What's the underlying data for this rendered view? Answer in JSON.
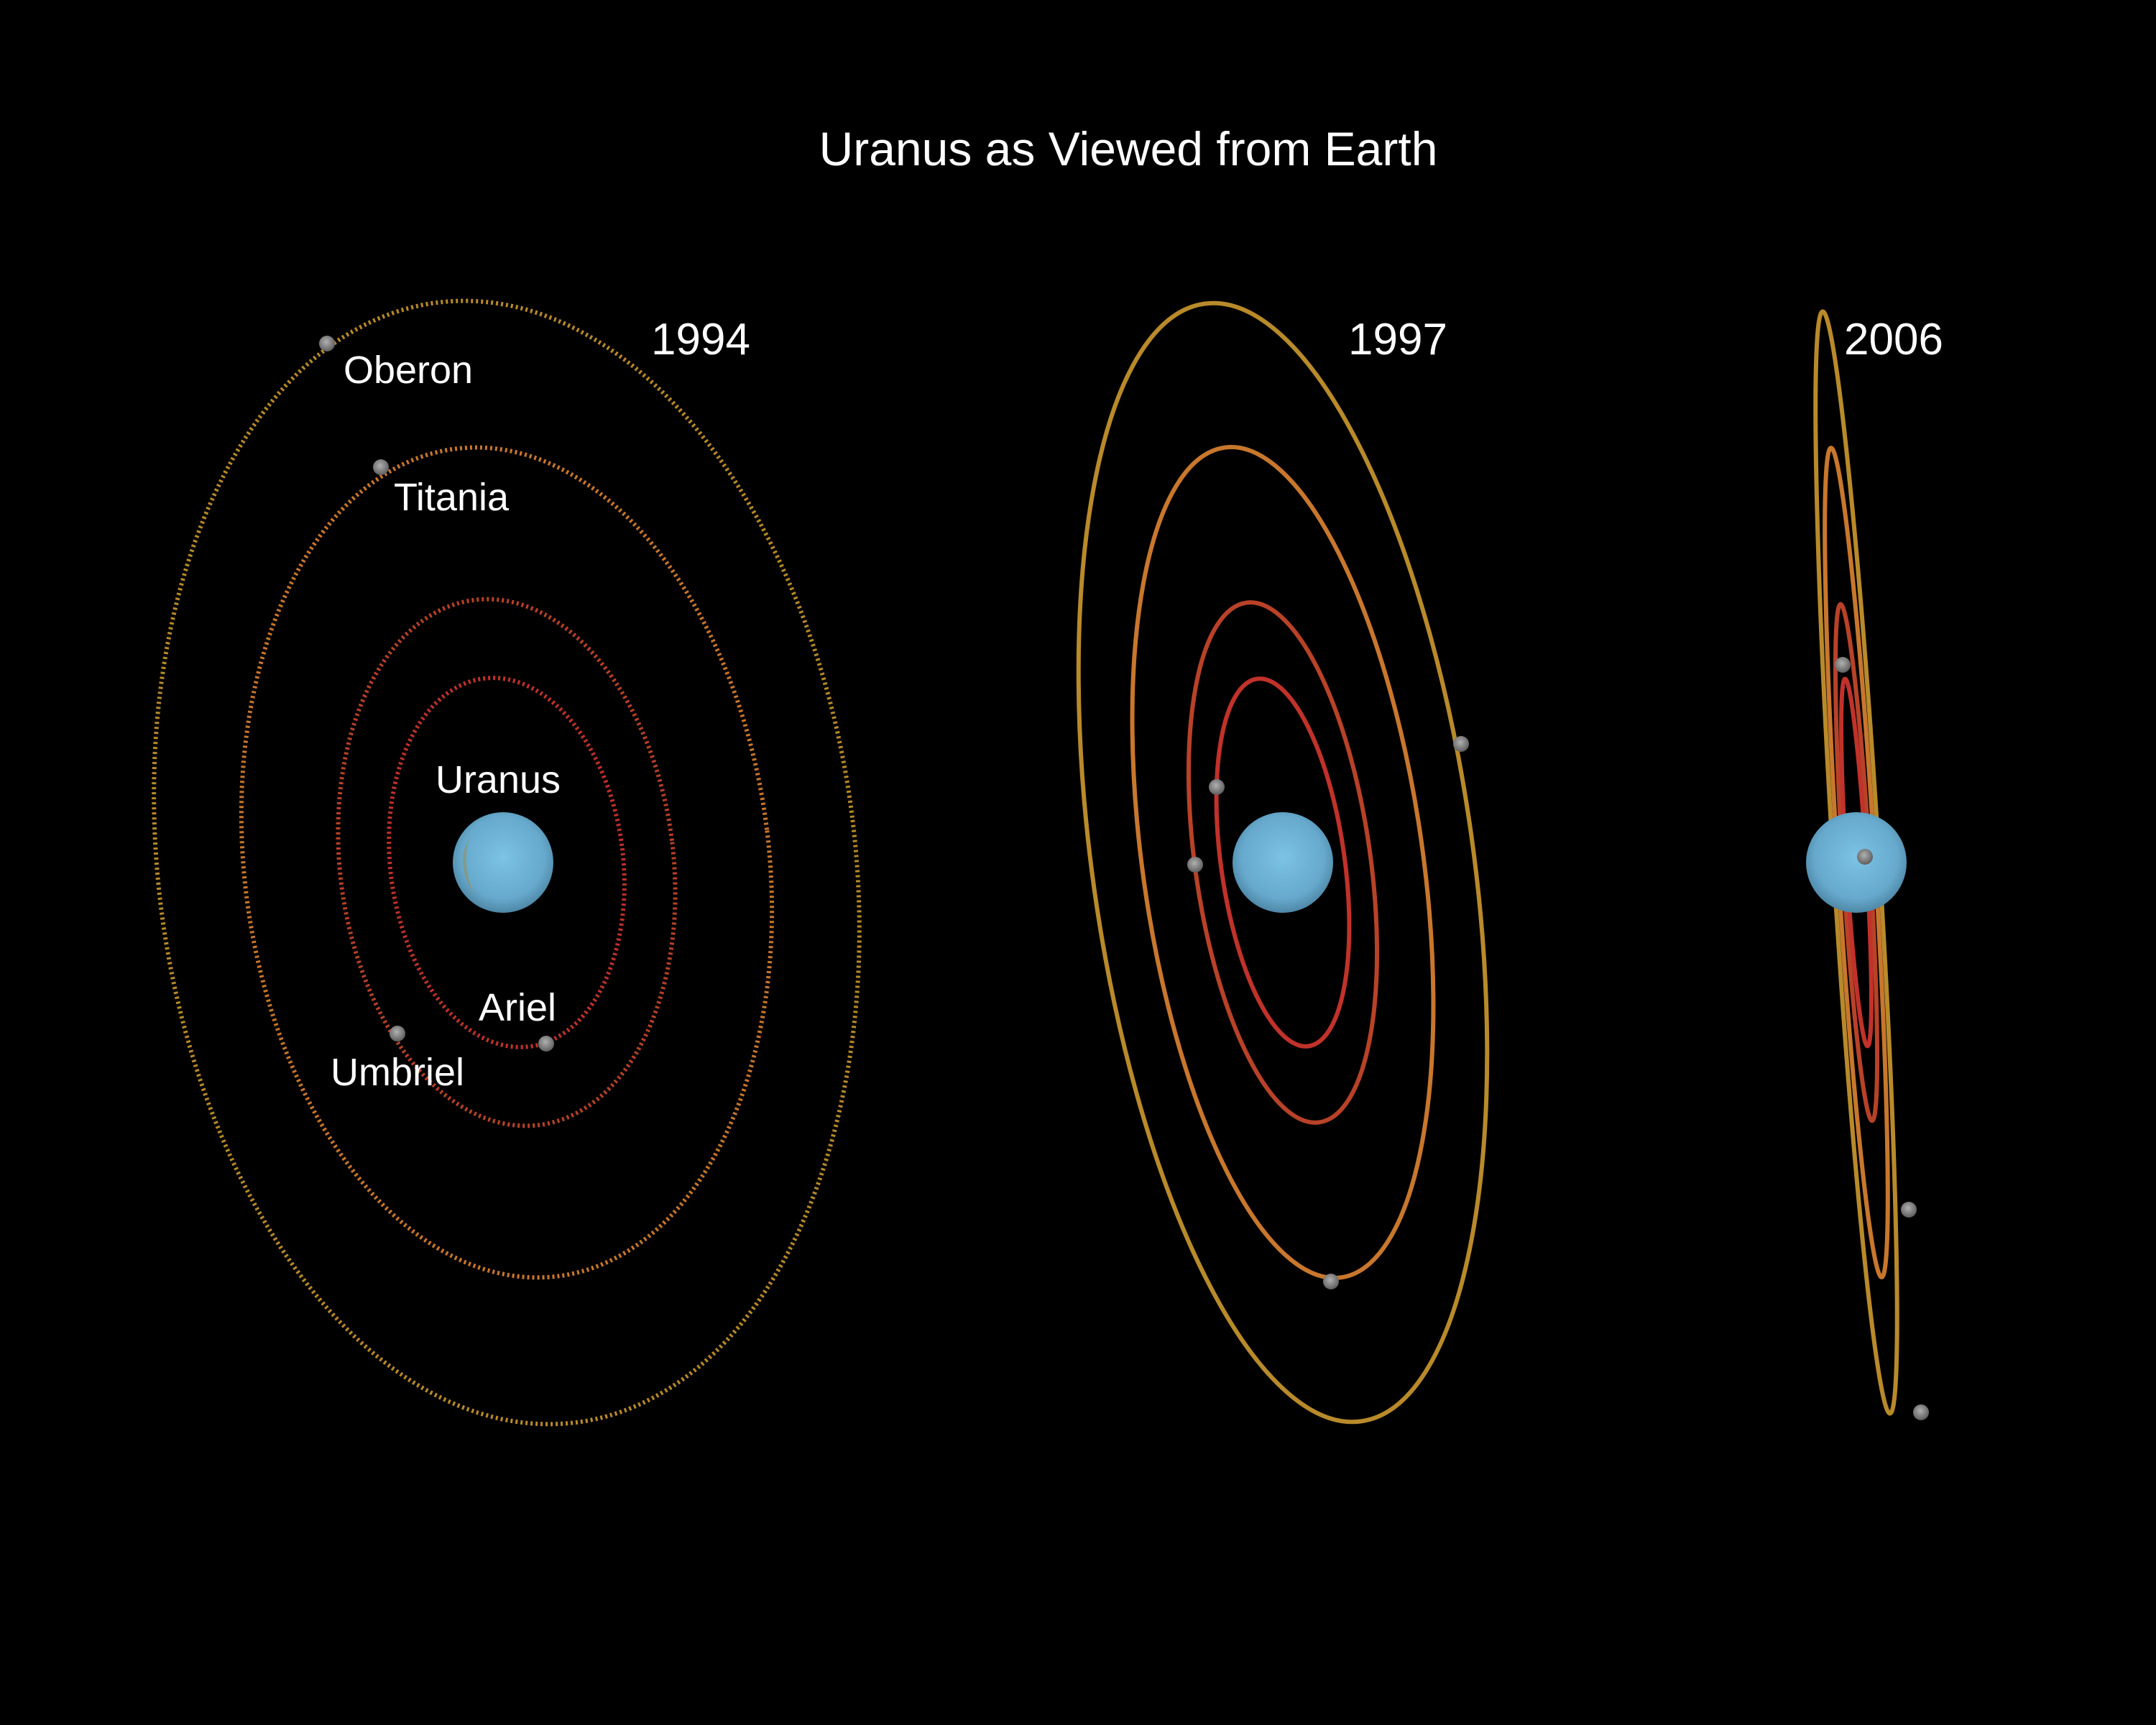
{
  "title": "Uranus as Viewed from Earth",
  "colors": {
    "background": "#000000",
    "planet": "#6fb3d6",
    "moon": "#8a8a8a",
    "orbits": {
      "oberon": "#b88a2a",
      "titania": "#c8772d",
      "umbriel": "#b84228",
      "ariel": "#c0322a"
    }
  },
  "panels": [
    {
      "year": "1994",
      "labels": {
        "planet": "Uranus",
        "oberon": "Oberon",
        "titania": "Titania",
        "umbriel": "Umbriel",
        "ariel": "Ariel"
      }
    },
    {
      "year": "1997"
    },
    {
      "year": "2006"
    }
  ]
}
